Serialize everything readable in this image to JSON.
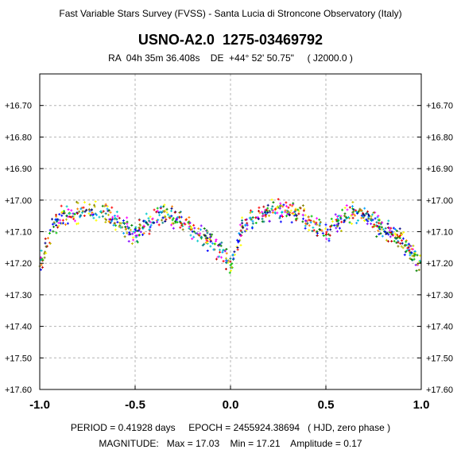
{
  "header": {
    "survey": "Fast Variable Stars Survey (FVSS) - Santa Lucia di Stroncone Observatory (Italy)",
    "star": "USNO-A2.0  1275-03469792",
    "coords": "RA  04h 35m 36.408s    DE  +44° 52' 50.75\"     ( J2000.0 )"
  },
  "footer": {
    "period_line": "PERIOD = 0.41928 days     EPOCH = 2455924.38694   ( HJD, zero phase )",
    "magnitude_line": "MAGNITUDE:   Max = 17.03    Min = 17.21    Amplitude = 0.17"
  },
  "chart_data": {
    "type": "scatter",
    "title": "USNO-A2.0  1275-03469792",
    "x_range": [
      -1.0,
      1.0
    ],
    "y_range": [
      16.6,
      17.6
    ],
    "y_inverted": true,
    "x_ticks": [
      "-1.0",
      "-0.5",
      "0.0",
      "0.5",
      "1.0"
    ],
    "x_tick_values": [
      -1.0,
      -0.5,
      0.0,
      0.5,
      1.0
    ],
    "y_ticks": [
      "+16.70",
      "+16.80",
      "+16.90",
      "+17.00",
      "+17.10",
      "+17.20",
      "+17.30",
      "+17.40",
      "+17.50",
      "+17.60"
    ],
    "y_tick_values": [
      16.7,
      16.8,
      16.9,
      17.0,
      17.1,
      17.2,
      17.3,
      17.4,
      17.5,
      17.6
    ],
    "grid": true,
    "light_curve": {
      "phases": [
        0.0,
        0.03,
        0.06,
        0.1,
        0.15,
        0.2,
        0.25,
        0.3,
        0.35,
        0.4,
        0.45,
        0.5,
        0.55,
        0.6,
        0.65,
        0.7,
        0.75,
        0.8,
        0.85,
        0.9,
        0.95,
        1.0
      ],
      "magnitudes": [
        17.21,
        17.15,
        17.09,
        17.06,
        17.05,
        17.04,
        17.035,
        17.03,
        17.04,
        17.06,
        17.09,
        17.11,
        17.08,
        17.05,
        17.045,
        17.05,
        17.07,
        17.09,
        17.11,
        17.13,
        17.16,
        17.21
      ],
      "scatter": 0.035
    },
    "marker_colors": [
      "#0000ff",
      "#000080",
      "#008000",
      "#00c000",
      "#00c8c8",
      "#00a0ff",
      "#ff0000",
      "#c00000",
      "#ff8000",
      "#ffff00",
      "#c0c000",
      "#808000",
      "#8000ff",
      "#ff00ff",
      "#008080"
    ]
  }
}
